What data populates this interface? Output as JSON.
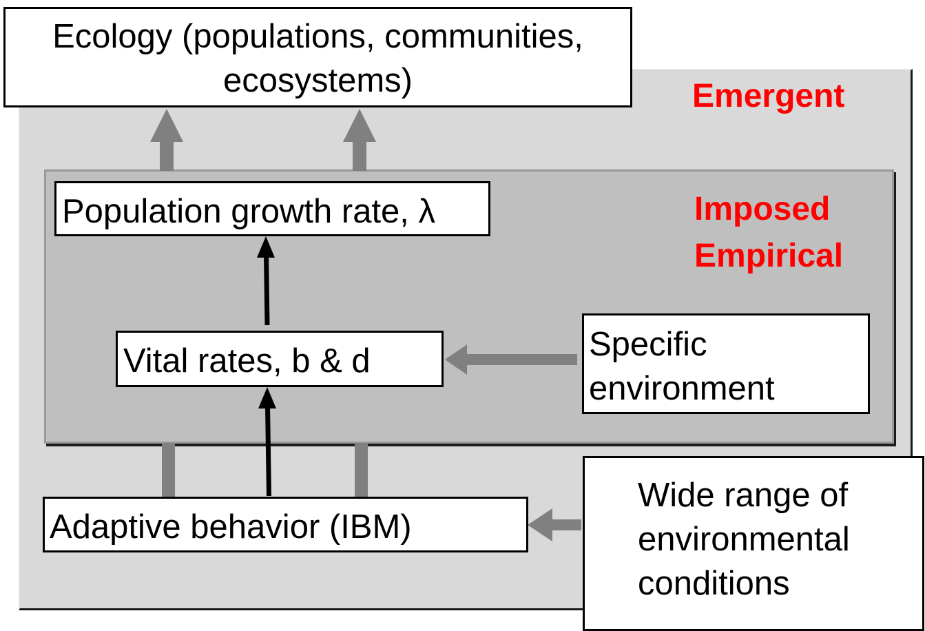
{
  "boxes": {
    "ecology": "Ecology (populations, communities, ecosystems)",
    "growth_rate": "Population growth rate, λ",
    "vital_rates": "Vital rates, b & d",
    "specific_env": "Specific environment",
    "adaptive": "Adaptive behavior (IBM)",
    "wide_range": "Wide range of environmental conditions"
  },
  "labels": {
    "emergent": "Emergent",
    "imposed": "Imposed",
    "empirical": "Empirical"
  },
  "colors": {
    "label_red": "#ff0000",
    "outer_panel": "#d9d9d9",
    "inner_panel": "#bfbfbf",
    "gray_arrow": "#808080",
    "black_arrow": "#000000"
  }
}
